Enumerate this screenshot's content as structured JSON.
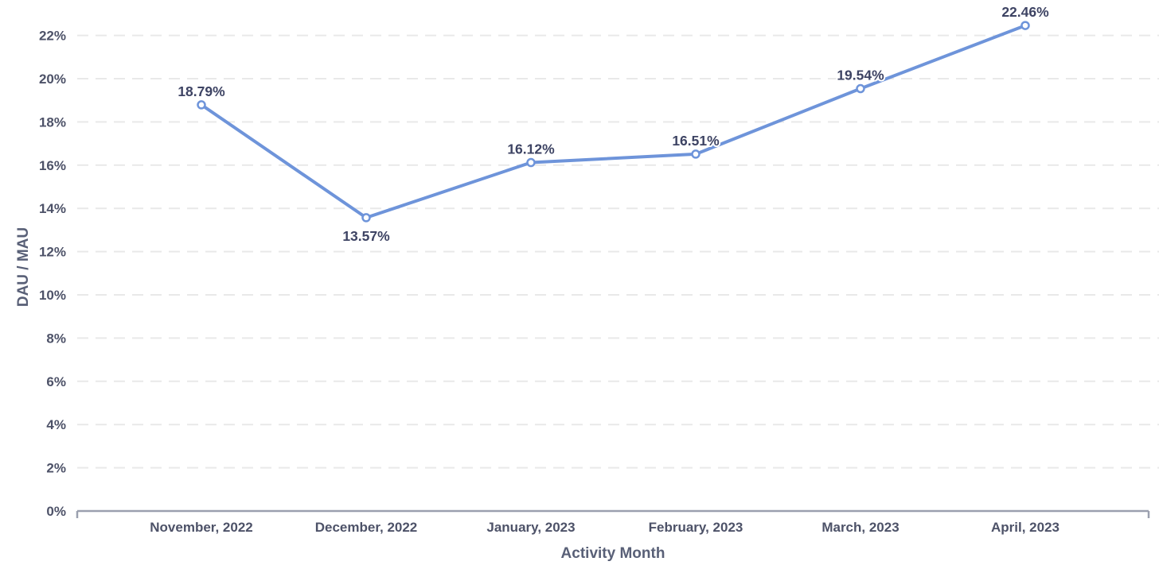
{
  "chart_data": {
    "type": "line",
    "title": "",
    "xlabel": "Activity Month",
    "ylabel": "DAU / MAU",
    "categories": [
      "November, 2022",
      "December, 2022",
      "January, 2023",
      "February, 2023",
      "March, 2023",
      "April, 2023"
    ],
    "series": [
      {
        "name": "DAU / MAU",
        "values": [
          18.79,
          13.57,
          16.12,
          16.51,
          19.54,
          22.46
        ]
      }
    ],
    "point_labels": [
      "18.79%",
      "13.57%",
      "16.12%",
      "16.51%",
      "19.54%",
      "22.46%"
    ],
    "label_placement": [
      "above",
      "below",
      "above",
      "above",
      "above",
      "above"
    ],
    "ylim": [
      0,
      22
    ],
    "y_tick_step": 2,
    "y_tick_suffix": "%",
    "grid": "horizontal-dashed",
    "legend": "none",
    "colors": {
      "line": "#6e94da",
      "marker_fill": "#ffffff",
      "data_label": "#3d4363",
      "tick_label": "#4d5268",
      "axis_title": "#596077",
      "gridline": "#e9e9e9",
      "axis_line": "#9ba0af",
      "background": "#ffffff"
    }
  }
}
